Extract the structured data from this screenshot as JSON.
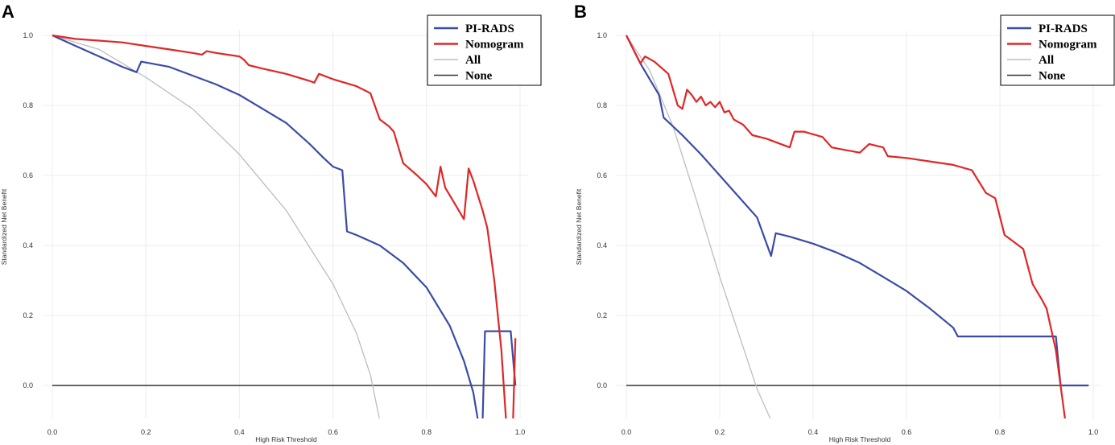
{
  "chart_data": [
    {
      "panel": "A",
      "type": "line",
      "xlabel": "High Risk Threshold",
      "ylabel": "Standardized Net Benefit",
      "xlim": [
        0,
        1
      ],
      "ylim": [
        -0.1,
        1
      ],
      "xticks": [
        "0.0",
        "0.2",
        "0.4",
        "0.6",
        "0.8",
        "1.0"
      ],
      "xtick_values": [
        0,
        0.2,
        0.4,
        0.6,
        0.8,
        1.0
      ],
      "yticks": [
        "0.0",
        "0.2",
        "0.4",
        "0.6",
        "0.8",
        "1.0"
      ],
      "ytick_values": [
        0,
        0.2,
        0.4,
        0.6,
        0.8,
        1.0
      ],
      "grid": true,
      "legend_position": "top-right",
      "series": [
        {
          "name": "PI-RADS",
          "color": "#3b4ba6",
          "x": [
            0,
            0.05,
            0.1,
            0.15,
            0.18,
            0.19,
            0.25,
            0.3,
            0.35,
            0.4,
            0.45,
            0.5,
            0.55,
            0.58,
            0.6,
            0.62,
            0.63,
            0.65,
            0.7,
            0.75,
            0.8,
            0.85,
            0.88,
            0.9,
            0.91,
            0.92,
            0.925,
            0.93,
            0.98,
            0.99
          ],
          "y": [
            1.0,
            0.97,
            0.94,
            0.91,
            0.895,
            0.925,
            0.91,
            0.885,
            0.86,
            0.83,
            0.79,
            0.75,
            0.69,
            0.65,
            0.625,
            0.615,
            0.44,
            0.43,
            0.4,
            0.35,
            0.28,
            0.17,
            0.07,
            -0.02,
            -0.1,
            -0.1,
            0.155,
            0.155,
            0.155,
            0.0
          ]
        },
        {
          "name": "Nomogram",
          "color": "#e02626",
          "x": [
            0,
            0.05,
            0.1,
            0.15,
            0.2,
            0.25,
            0.3,
            0.32,
            0.33,
            0.35,
            0.4,
            0.41,
            0.42,
            0.45,
            0.5,
            0.55,
            0.56,
            0.57,
            0.6,
            0.65,
            0.68,
            0.7,
            0.72,
            0.73,
            0.75,
            0.78,
            0.8,
            0.82,
            0.83,
            0.84,
            0.86,
            0.88,
            0.89,
            0.9,
            0.92,
            0.93,
            0.945,
            0.96,
            0.97,
            0.985,
            0.99
          ],
          "y": [
            1.0,
            0.99,
            0.985,
            0.98,
            0.97,
            0.96,
            0.95,
            0.945,
            0.955,
            0.95,
            0.94,
            0.93,
            0.915,
            0.905,
            0.89,
            0.87,
            0.865,
            0.89,
            0.875,
            0.855,
            0.835,
            0.76,
            0.74,
            0.725,
            0.635,
            0.6,
            0.575,
            0.54,
            0.625,
            0.565,
            0.52,
            0.475,
            0.62,
            0.585,
            0.5,
            0.45,
            0.3,
            0.1,
            -0.1,
            -0.1,
            0.135
          ]
        },
        {
          "name": "All",
          "color": "#bdbdbd",
          "x": [
            0,
            0.1,
            0.2,
            0.3,
            0.4,
            0.5,
            0.6,
            0.65,
            0.68,
            0.7
          ],
          "y": [
            1.0,
            0.96,
            0.88,
            0.79,
            0.66,
            0.5,
            0.29,
            0.15,
            0.03,
            -0.1
          ]
        },
        {
          "name": "None",
          "color": "#333333",
          "x": [
            0,
            0.99
          ],
          "y": [
            0,
            0
          ]
        }
      ]
    },
    {
      "panel": "B",
      "type": "line",
      "xlabel": "High Risk Threshold",
      "ylabel": "Standardized Net Benefit",
      "xlim": [
        0,
        1
      ],
      "ylim": [
        -0.1,
        1
      ],
      "xticks": [
        "0.0",
        "0.2",
        "0.4",
        "0.6",
        "0.8",
        "1.0"
      ],
      "xtick_values": [
        0,
        0.2,
        0.4,
        0.6,
        0.8,
        1.0
      ],
      "yticks": [
        "0.0",
        "0.2",
        "0.4",
        "0.6",
        "0.8",
        "1.0"
      ],
      "ytick_values": [
        0,
        0.2,
        0.4,
        0.6,
        0.8,
        1.0
      ],
      "grid": true,
      "legend_position": "top-right",
      "series": [
        {
          "name": "PI-RADS",
          "color": "#3b4ba6",
          "x": [
            0,
            0.03,
            0.07,
            0.08,
            0.12,
            0.16,
            0.2,
            0.24,
            0.28,
            0.31,
            0.32,
            0.35,
            0.4,
            0.45,
            0.5,
            0.55,
            0.6,
            0.65,
            0.7,
            0.71,
            0.8,
            0.92,
            0.93,
            0.99
          ],
          "y": [
            1.0,
            0.92,
            0.83,
            0.765,
            0.715,
            0.66,
            0.6,
            0.54,
            0.48,
            0.37,
            0.435,
            0.425,
            0.405,
            0.38,
            0.35,
            0.31,
            0.27,
            0.22,
            0.165,
            0.14,
            0.14,
            0.14,
            0.0,
            0.0
          ]
        },
        {
          "name": "Nomogram",
          "color": "#e02626",
          "x": [
            0,
            0.03,
            0.04,
            0.06,
            0.09,
            0.11,
            0.12,
            0.13,
            0.14,
            0.15,
            0.16,
            0.17,
            0.18,
            0.19,
            0.2,
            0.21,
            0.22,
            0.23,
            0.25,
            0.27,
            0.3,
            0.35,
            0.36,
            0.38,
            0.42,
            0.44,
            0.46,
            0.5,
            0.52,
            0.55,
            0.56,
            0.6,
            0.65,
            0.7,
            0.74,
            0.77,
            0.79,
            0.81,
            0.83,
            0.85,
            0.87,
            0.89,
            0.9,
            0.92,
            0.94
          ],
          "y": [
            1.0,
            0.92,
            0.94,
            0.925,
            0.89,
            0.8,
            0.79,
            0.845,
            0.83,
            0.81,
            0.825,
            0.8,
            0.81,
            0.795,
            0.81,
            0.78,
            0.785,
            0.76,
            0.745,
            0.715,
            0.705,
            0.68,
            0.725,
            0.725,
            0.71,
            0.68,
            0.675,
            0.665,
            0.69,
            0.68,
            0.655,
            0.65,
            0.64,
            0.63,
            0.615,
            0.55,
            0.535,
            0.43,
            0.41,
            0.39,
            0.29,
            0.245,
            0.22,
            0.1,
            -0.1
          ]
        },
        {
          "name": "All",
          "color": "#bdbdbd",
          "x": [
            0,
            0.05,
            0.1,
            0.15,
            0.2,
            0.25,
            0.28,
            0.3,
            0.31
          ],
          "y": [
            1.0,
            0.9,
            0.74,
            0.53,
            0.31,
            0.11,
            -0.01,
            -0.07,
            -0.1
          ]
        },
        {
          "name": "None",
          "color": "#333333",
          "x": [
            0,
            0.99
          ],
          "y": [
            0,
            0
          ]
        }
      ]
    }
  ]
}
